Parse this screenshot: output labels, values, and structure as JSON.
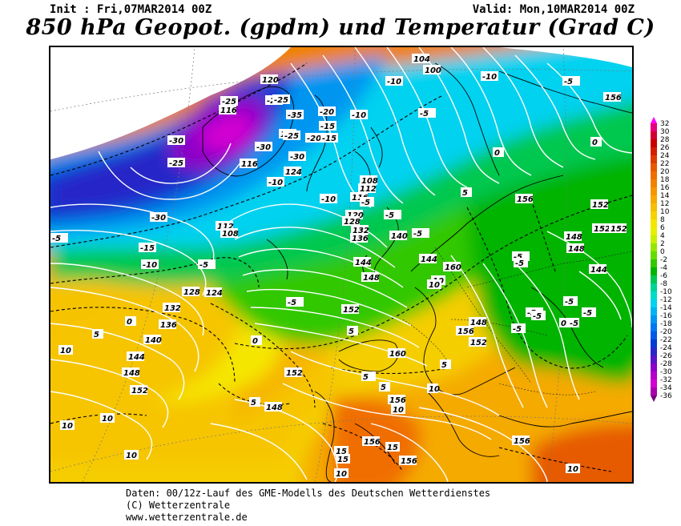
{
  "header": {
    "init": "Init : Fri,07MAR2014 00Z",
    "valid": "Valid: Mon,10MAR2014 00Z",
    "title": "850 hPa Geopot. (gpdm) und Temperatur (Grad C)"
  },
  "legend": {
    "ticks": [
      "32",
      "30",
      "28",
      "26",
      "24",
      "22",
      "20",
      "18",
      "16",
      "14",
      "12",
      "10",
      "8",
      "6",
      "4",
      "2",
      "0",
      "-2",
      "-4",
      "-6",
      "-8",
      "-10",
      "-12",
      "-14",
      "-16",
      "-18",
      "-20",
      "-22",
      "-24",
      "-26",
      "-28",
      "-30",
      "-32",
      "-34",
      "-36"
    ],
    "colors": [
      "#ff00ff",
      "#e6007f",
      "#d20032",
      "#c80000",
      "#d21e00",
      "#dc3c00",
      "#e65a00",
      "#f06e00",
      "#f08200",
      "#f59600",
      "#f5aa00",
      "#f5be00",
      "#f5d200",
      "#f5e600",
      "#e6f000",
      "#c8f000",
      "#96e600",
      "#64dc00",
      "#32c800",
      "#00b400",
      "#00c850",
      "#00d296",
      "#00dcc8",
      "#00d2f0",
      "#00b4f0",
      "#0096f0",
      "#0078f0",
      "#005ae6",
      "#003cd2",
      "#2828c8",
      "#5a14c8",
      "#8c00c8",
      "#b400c8",
      "#d200d2",
      "#aa00aa",
      "#780078"
    ]
  },
  "map_labels": {
    "geopotential": [
      "120",
      "116",
      "124",
      "124",
      "116",
      "112",
      "108",
      "104",
      "100",
      "108",
      "112",
      "116",
      "120",
      "128",
      "132",
      "136",
      "140",
      "144",
      "148",
      "152",
      "156",
      "160",
      "112",
      "108",
      "100",
      "116",
      "120",
      "124",
      "128",
      "132",
      "136",
      "140",
      "144",
      "148",
      "152",
      "152",
      "148",
      "144",
      "148",
      "152",
      "156",
      "160",
      "152",
      "148",
      "156",
      "156",
      "156",
      "152",
      "152",
      "148",
      "144",
      "156",
      "156"
    ],
    "temperature": [
      "-30",
      "-25",
      "-20",
      "-30",
      "-25",
      "-35",
      "-20",
      "-15",
      "-25",
      "-30",
      "-25",
      "-20",
      "-15",
      "-10",
      "-10",
      "-30",
      "-5",
      "-15",
      "-10",
      "-5",
      "0",
      "-5",
      "-10",
      "-10",
      "-5",
      "0",
      "-5",
      "-10",
      "-5",
      "-5",
      "5",
      "5",
      "0",
      "-5",
      "-5",
      "10",
      "10",
      "5",
      "10",
      "10",
      "10",
      "15",
      "10",
      "5",
      "5",
      "10",
      "0",
      "5",
      "-5",
      "-5",
      "-5",
      "-5",
      "0",
      "10",
      "10",
      "15",
      "15",
      "10",
      "5",
      "-5",
      "-5",
      "-5",
      "0"
    ]
  },
  "footer": {
    "line1": "Daten: 00/12z-Lauf des GME-Modells des Deutschen Wetterdienstes",
    "line2": "(C) Wetterzentrale",
    "line3": "www.wetterzentrale.de"
  }
}
